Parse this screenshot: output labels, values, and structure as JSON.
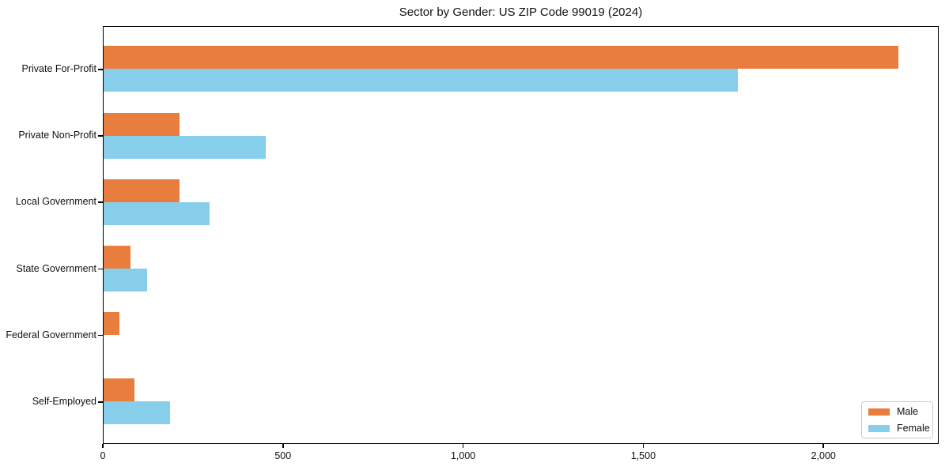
{
  "title": "Sector by Gender: US ZIP Code 99019 (2024)",
  "colors": {
    "male": "#e87d3e",
    "female": "#87ceeb",
    "axis": "#000000",
    "background": "#ffffff",
    "legend_border": "#c9c9c9"
  },
  "legend": {
    "position": "lower right",
    "items": [
      {
        "label": "Male",
        "color_key": "male"
      },
      {
        "label": "Female",
        "color_key": "female"
      }
    ]
  },
  "chart_data": {
    "type": "bar",
    "orientation": "horizontal",
    "title": "Sector by Gender: US ZIP Code 99019 (2024)",
    "categories": [
      "Private For-Profit",
      "Private Non-Profit",
      "Local Government",
      "State Government",
      "Federal Government",
      "Self-Employed"
    ],
    "series": [
      {
        "name": "Male",
        "color": "#e87d3e",
        "values": [
          2205,
          210,
          210,
          75,
          43,
          85
        ]
      },
      {
        "name": "Female",
        "color": "#87ceeb",
        "values": [
          1760,
          450,
          295,
          120,
          0,
          185
        ]
      }
    ],
    "xlabel": "",
    "ylabel": "",
    "xlim": [
      0,
      2320
    ],
    "xticks": [
      0,
      500,
      1000,
      1500,
      2000
    ],
    "xtick_labels": [
      "0",
      "500",
      "1,000",
      "1,500",
      "2,000"
    ],
    "grid": false,
    "legend_position": "lower right"
  }
}
